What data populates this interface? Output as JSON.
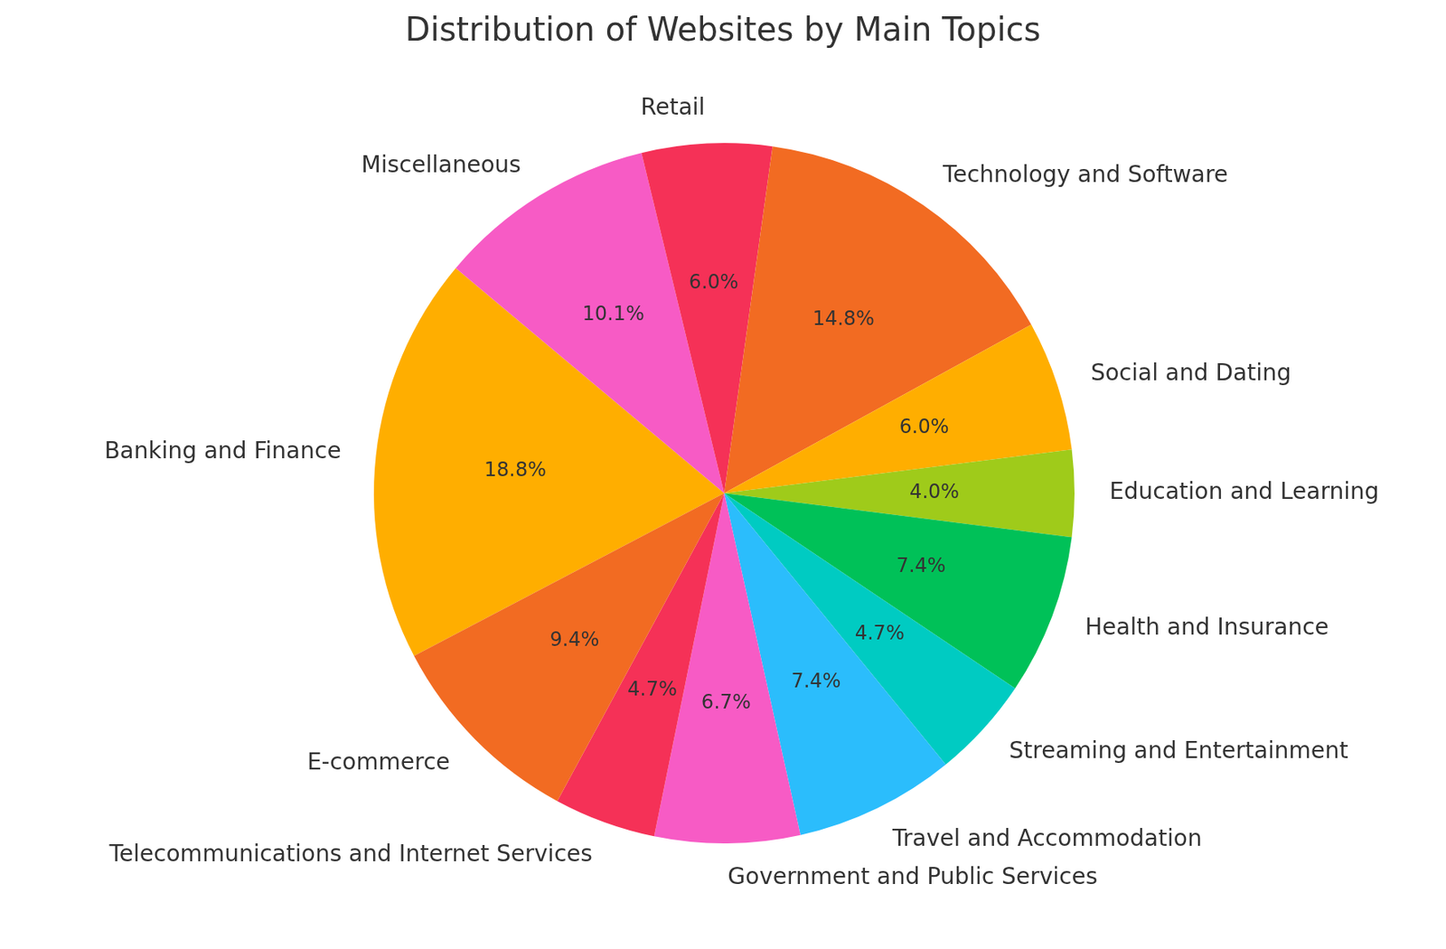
{
  "chart_data": {
    "type": "pie",
    "title": "Distribution of Websites by Main Topics",
    "categories": [
      "Banking and Finance",
      "Miscellaneous",
      "Retail",
      "Technology and Software",
      "Social and Dating",
      "Education and Learning",
      "Health and Insurance",
      "Streaming and Entertainment",
      "Travel and Accommodation",
      "Government and Public Services",
      "Telecommunications and Internet Services",
      "E-commerce"
    ],
    "values": [
      18.8,
      10.1,
      6.0,
      14.8,
      6.0,
      4.0,
      7.4,
      4.7,
      7.4,
      6.7,
      4.7,
      9.4
    ],
    "value_labels": [
      "18.8%",
      "10.1%",
      "6.0%",
      "14.8%",
      "6.0%",
      "4.0%",
      "7.4%",
      "4.7%",
      "7.4%",
      "6.7%",
      "4.7%",
      "9.4%"
    ],
    "colors": [
      "#ffae00",
      "#f75bc5",
      "#f53157",
      "#f26b22",
      "#ffae00",
      "#9fcb1a",
      "#00c158",
      "#00cbc2",
      "#2bbdfc",
      "#f75bc5",
      "#f53157",
      "#f26b22"
    ],
    "data_labels": true
  }
}
